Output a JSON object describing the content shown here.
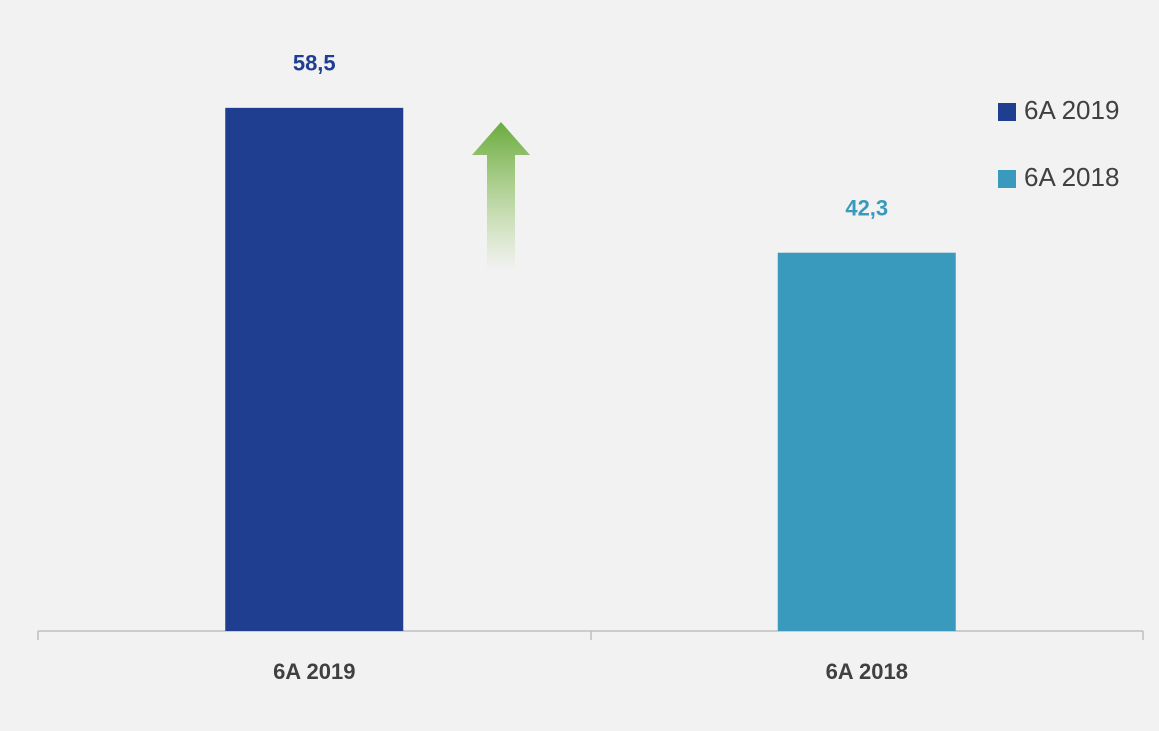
{
  "chart_data": {
    "type": "bar",
    "categories": [
      "6A 2019",
      "6A 2018"
    ],
    "series": [
      {
        "name": "6A 2019",
        "color": "#1f3e8f",
        "values": [
          58.5,
          null
        ],
        "value_labels": [
          "58,5",
          null
        ]
      },
      {
        "name": "6A 2018",
        "color": "#399abd",
        "values": [
          null,
          42.3
        ],
        "value_labels": [
          null,
          "42,3"
        ]
      }
    ],
    "ylim": [
      0,
      70
    ],
    "legend": "right"
  }
}
